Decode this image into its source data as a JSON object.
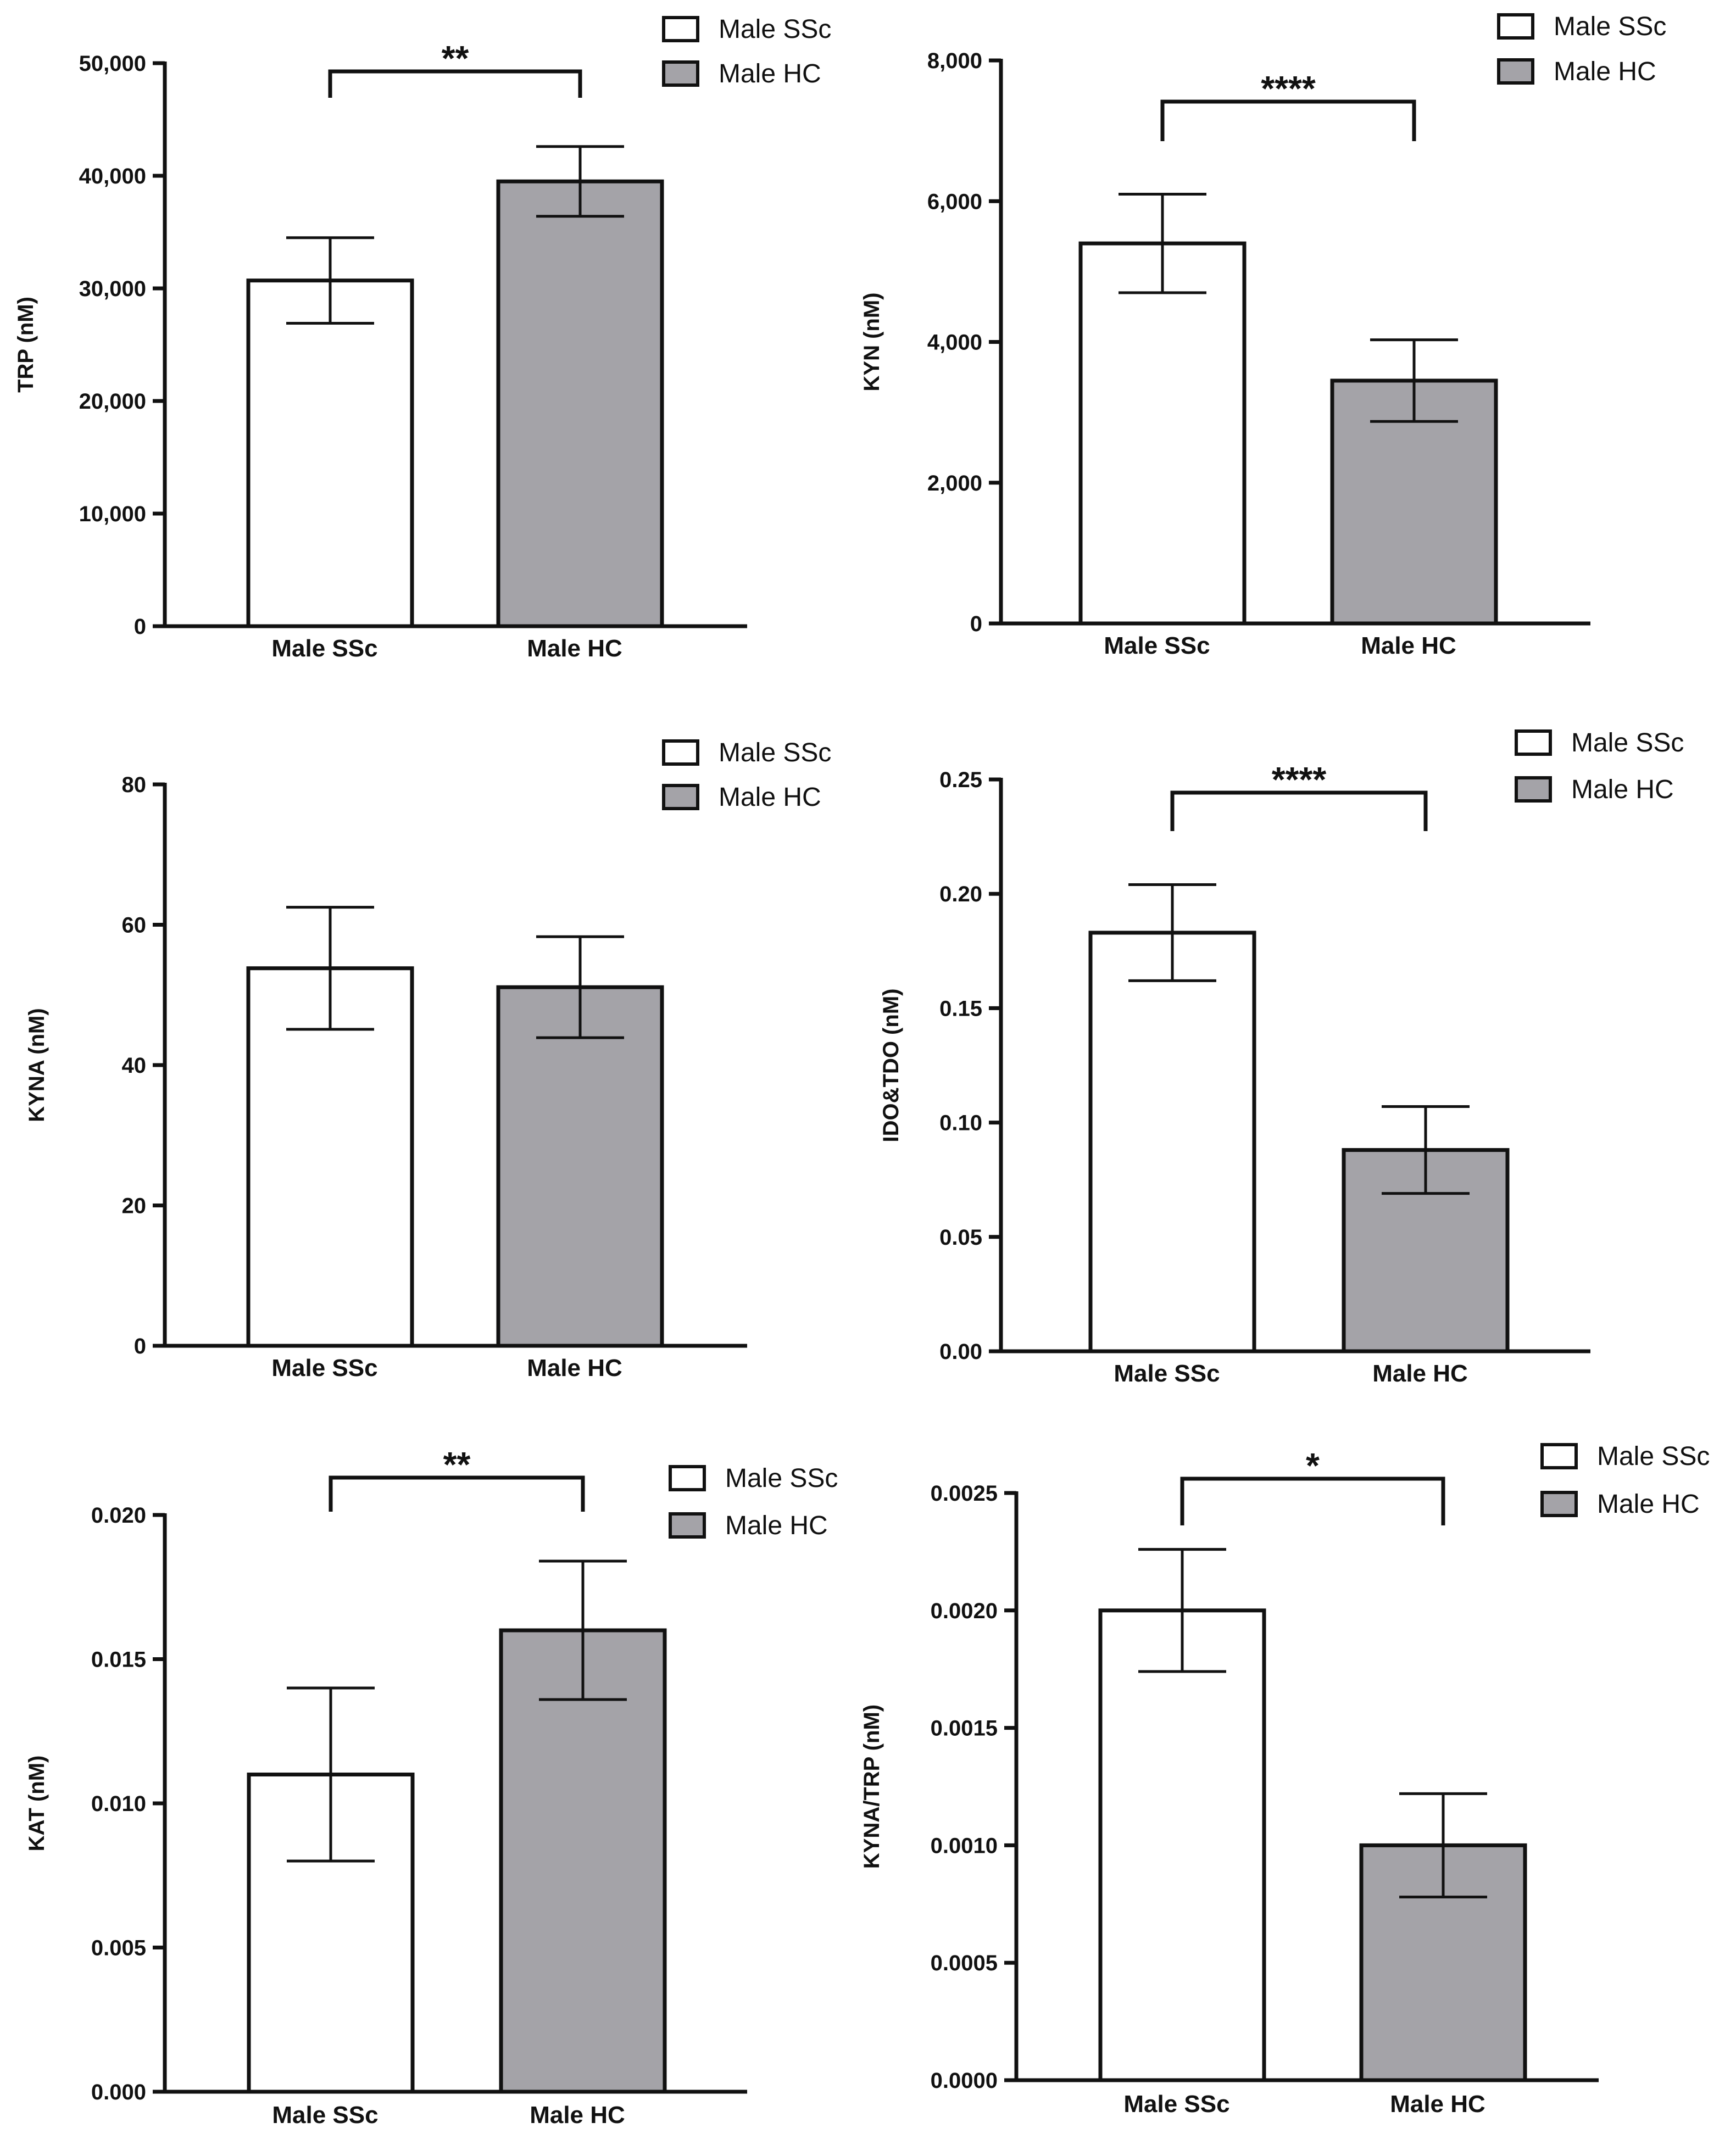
{
  "colors": {
    "ssc": "#ffffff",
    "hc": "#a4a3a8",
    "stroke": "#111111"
  },
  "chart_data": [
    {
      "type": "bar",
      "ylabel": "TRP (nM)",
      "categories": [
        "Male SSc",
        "Male HC"
      ],
      "values": [
        30700,
        39500
      ],
      "errors": [
        3800,
        3100
      ],
      "ylim": [
        0,
        50000
      ],
      "yticks": [
        0,
        10000,
        20000,
        30000,
        40000,
        50000
      ],
      "ytick_labels": [
        "0",
        "10,000",
        "20,000",
        "30,000",
        "40,000",
        "50,000"
      ],
      "significance": "**",
      "legend": [
        "Male SSc",
        "Male HC"
      ],
      "legend_position": "top-right"
    },
    {
      "type": "bar",
      "ylabel": "KYN (nM)",
      "categories": [
        "Male SSc",
        "Male HC"
      ],
      "values": [
        5400,
        3450
      ],
      "errors": [
        700,
        580
      ],
      "ylim": [
        0,
        8000
      ],
      "yticks": [
        0,
        2000,
        4000,
        6000,
        8000
      ],
      "ytick_labels": [
        "0",
        "2,000",
        "4,000",
        "6,000",
        "8,000"
      ],
      "significance": "****",
      "legend": [
        "Male SSc",
        "Male HC"
      ],
      "legend_position": "top-right"
    },
    {
      "type": "bar",
      "ylabel": "KYNA (nM)",
      "categories": [
        "Male SSc",
        "Male HC"
      ],
      "values": [
        53.8,
        51.1
      ],
      "errors": [
        8.7,
        7.2
      ],
      "ylim": [
        0,
        80
      ],
      "yticks": [
        0,
        20,
        40,
        60,
        80
      ],
      "ytick_labels": [
        "0",
        "20",
        "40",
        "60",
        "80"
      ],
      "significance": "",
      "legend": [
        "Male SSc",
        "Male HC"
      ],
      "legend_position": "top-right"
    },
    {
      "type": "bar",
      "ylabel": "IDO&TDO (nM)",
      "categories": [
        "Male SSc",
        "Male HC"
      ],
      "values": [
        0.183,
        0.088
      ],
      "errors": [
        0.021,
        0.019
      ],
      "ylim": [
        0,
        0.25
      ],
      "yticks": [
        0,
        0.05,
        0.1,
        0.15,
        0.2,
        0.25
      ],
      "ytick_labels": [
        "0.00",
        "0.05",
        "0.10",
        "0.15",
        "0.20",
        "0.25"
      ],
      "significance": "****",
      "legend": [
        "Male SSc",
        "Male HC"
      ],
      "legend_position": "top-right"
    },
    {
      "type": "bar",
      "ylabel": "KAT (nM)",
      "categories": [
        "Male SSc",
        "Male HC"
      ],
      "values": [
        0.011,
        0.016
      ],
      "errors": [
        0.003,
        0.0024
      ],
      "ylim": [
        0,
        0.02
      ],
      "yticks": [
        0,
        0.005,
        0.01,
        0.015,
        0.02
      ],
      "ytick_labels": [
        "0.000",
        "0.005",
        "0.010",
        "0.015",
        "0.020"
      ],
      "significance": "**",
      "legend": [
        "Male SSc",
        "Male HC"
      ],
      "legend_position": "top-right"
    },
    {
      "type": "bar",
      "ylabel": "KYNA/TRP (nM)",
      "categories": [
        "Male SSc",
        "Male HC"
      ],
      "values": [
        0.002,
        0.001
      ],
      "errors": [
        0.00026,
        0.00022
      ],
      "ylim": [
        0,
        0.0025
      ],
      "yticks": [
        0,
        0.0005,
        0.001,
        0.0015,
        0.002,
        0.0025
      ],
      "ytick_labels": [
        "0.0000",
        "0.0005",
        "0.0010",
        "0.0015",
        "0.0020",
        "0.0025"
      ],
      "significance": "*",
      "legend": [
        "Male SSc",
        "Male HC"
      ],
      "legend_position": "top-right"
    }
  ]
}
